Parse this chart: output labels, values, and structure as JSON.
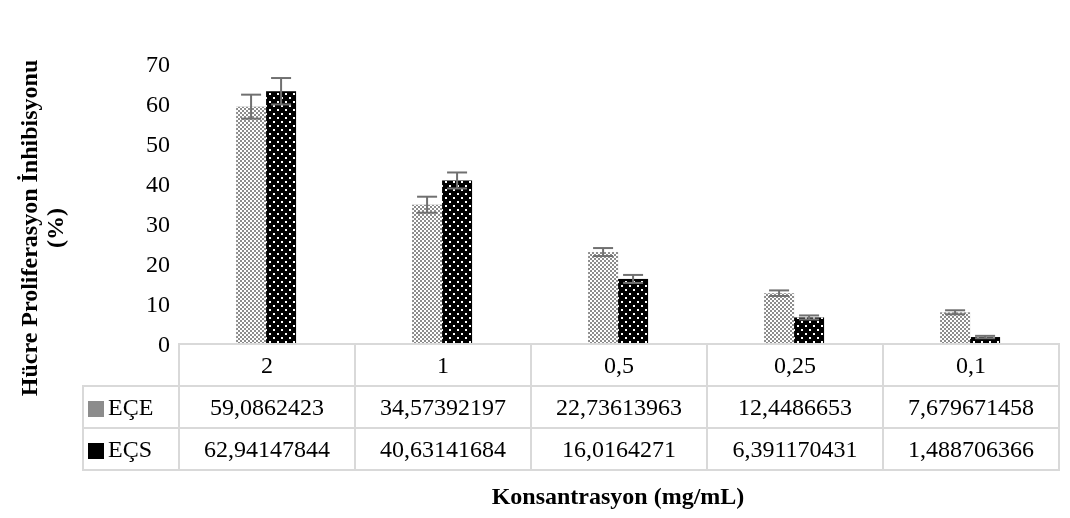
{
  "chart_data": {
    "type": "bar",
    "xlabel": "Konsantrasyon (mg/mL)",
    "ylabel": "Hücre Proliferasyon İnhibisyonu (%)",
    "categories": [
      "2",
      "1",
      "0,5",
      "0,25",
      "0,1"
    ],
    "series": [
      {
        "name": "EÇE",
        "color": "#8c8c8c",
        "values": [
          59.0862423,
          34.57392197,
          22.73613963,
          12.4486653,
          7.679671458
        ],
        "value_labels": [
          "59,0862423",
          "34,57392197",
          "22,73613963",
          "12,4486653",
          "7,679671458"
        ],
        "errors": [
          3,
          2,
          1,
          0.7,
          0.5
        ]
      },
      {
        "name": "EÇS",
        "color": "#000000",
        "values": [
          62.94147844,
          40.63141684,
          16.0164271,
          6.391170431,
          1.488706366
        ],
        "value_labels": [
          "62,94147844",
          "40,63141684",
          "16,0164271",
          "6,391170431",
          "1,488706366"
        ],
        "errors": [
          3.3,
          2,
          1,
          0.5,
          0.3
        ]
      }
    ],
    "ylim": [
      0,
      70
    ],
    "yticks": [
      0,
      10,
      20,
      30,
      40,
      50,
      60,
      70
    ],
    "legend": "bottom"
  }
}
